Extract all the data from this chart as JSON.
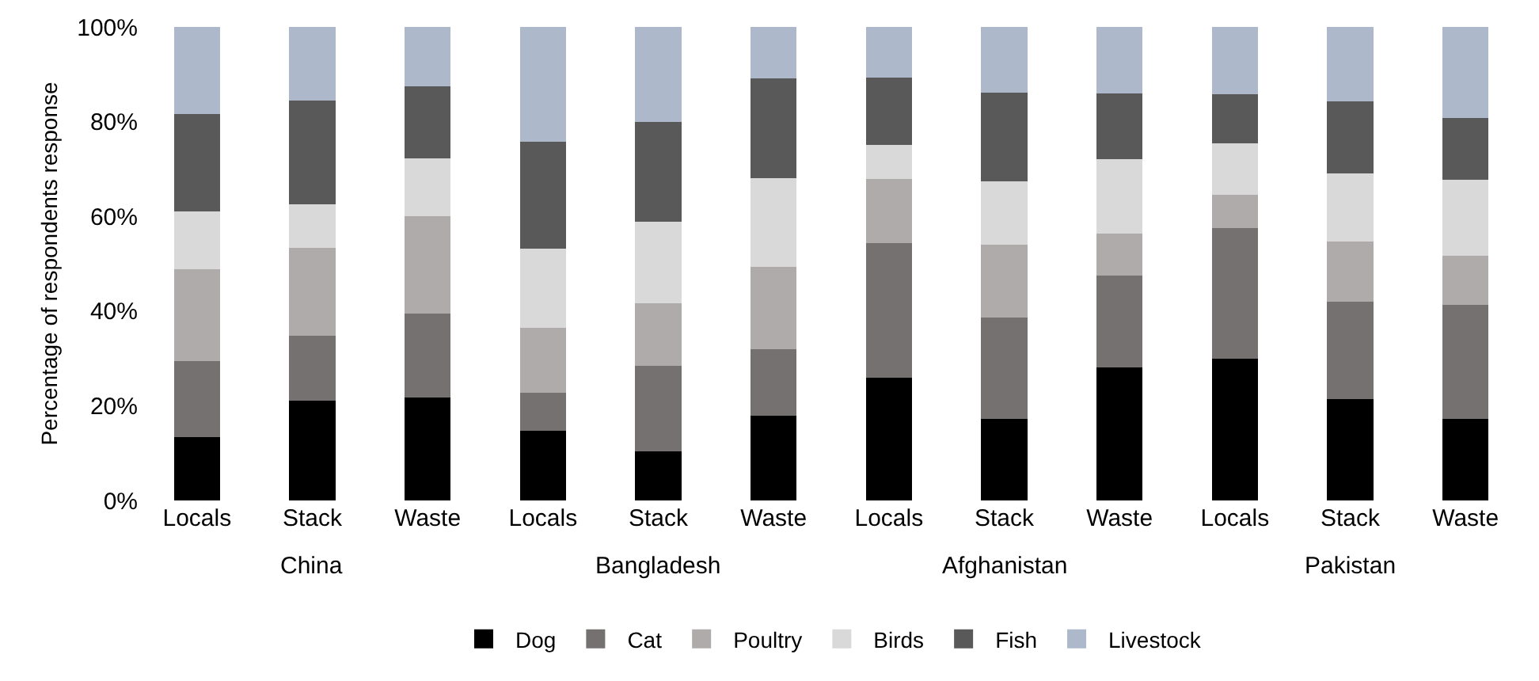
{
  "chart_data": {
    "type": "bar",
    "stacked": true,
    "ylabel": "Percentage of respondents response",
    "categories": [
      "Locals",
      "Stack",
      "Waste",
      "Locals",
      "Stack",
      "Waste",
      "Locals",
      "Stack",
      "Waste",
      "Locals",
      "Stack",
      "Waste"
    ],
    "annotations": [
      "China",
      "Bangladesh",
      "Afghanistan",
      "Pakistan"
    ],
    "series": [
      {
        "name": "Dog",
        "color": "#000000",
        "values": [
          13.4,
          21.0,
          21.8,
          14.8,
          10.3,
          17.9,
          25.9,
          17.3,
          28.1,
          30.0,
          21.4,
          17.3
        ]
      },
      {
        "name": "Cat",
        "color": "#767171",
        "values": [
          16.0,
          13.8,
          17.7,
          8.0,
          18.2,
          14.1,
          28.5,
          21.4,
          19.4,
          27.5,
          20.6,
          24.0
        ]
      },
      {
        "name": "Poultry",
        "color": "#afabab",
        "values": [
          19.4,
          18.5,
          20.5,
          13.6,
          13.2,
          17.4,
          13.5,
          15.3,
          8.8,
          7.1,
          12.7,
          10.3
        ]
      },
      {
        "name": "Birds",
        "color": "#d9d9d9",
        "values": [
          12.2,
          9.3,
          12.2,
          16.8,
          17.2,
          18.6,
          7.2,
          13.4,
          15.8,
          10.8,
          14.3,
          16.2
        ]
      },
      {
        "name": "Fish",
        "color": "#595959",
        "values": [
          20.6,
          21.9,
          15.2,
          22.6,
          21.0,
          21.2,
          14.2,
          18.7,
          13.8,
          10.4,
          15.2,
          13.0
        ]
      },
      {
        "name": "Livestock",
        "color": "#adb9ca",
        "values": [
          18.4,
          15.5,
          12.6,
          24.2,
          20.1,
          10.8,
          10.7,
          13.9,
          14.1,
          14.2,
          15.8,
          19.2
        ]
      }
    ],
    "ylim": [
      0,
      100
    ],
    "yticks": [
      {
        "value": 0,
        "label": "0%"
      },
      {
        "value": 20,
        "label": "20%"
      },
      {
        "value": 40,
        "label": "40%"
      },
      {
        "value": 60,
        "label": "60%"
      },
      {
        "value": 80,
        "label": "80%"
      },
      {
        "value": 100,
        "label": "100%"
      }
    ],
    "legend": "bottom"
  }
}
